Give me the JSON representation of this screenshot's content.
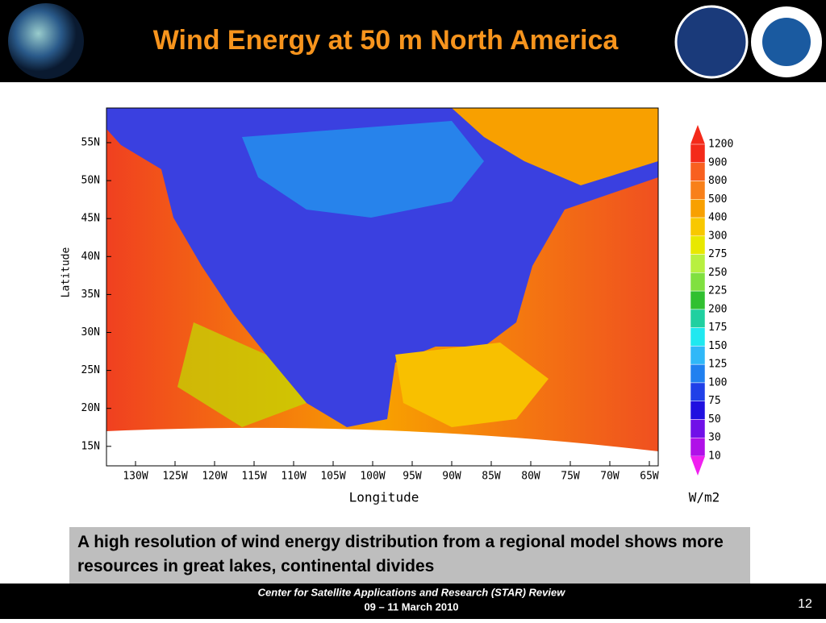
{
  "header": {
    "title": "Wind Energy at 50 m North America"
  },
  "map": {
    "y_label": "Latitude",
    "x_label": "Longitude",
    "lat_ticks": [
      "55N",
      "50N",
      "45N",
      "40N",
      "35N",
      "30N",
      "25N",
      "20N",
      "15N"
    ],
    "lon_ticks": [
      "130W",
      "125W",
      "120W",
      "115W",
      "110W",
      "105W",
      "100W",
      "95W",
      "90W",
      "85W",
      "80W",
      "75W",
      "70W",
      "65W"
    ],
    "colorbar": {
      "levels": [
        1200,
        900,
        800,
        500,
        400,
        300,
        275,
        250,
        225,
        200,
        175,
        150,
        125,
        100,
        75,
        50,
        30,
        10
      ],
      "unit": "W/m2"
    }
  },
  "caption": "A high resolution of wind energy  distribution from a regional model shows more resources in great lakes, continental divides",
  "footer": {
    "line1": "Center for Satellite Applications and Research (STAR) Review",
    "line2": "09 – 11 March 2010",
    "page": "12"
  }
}
